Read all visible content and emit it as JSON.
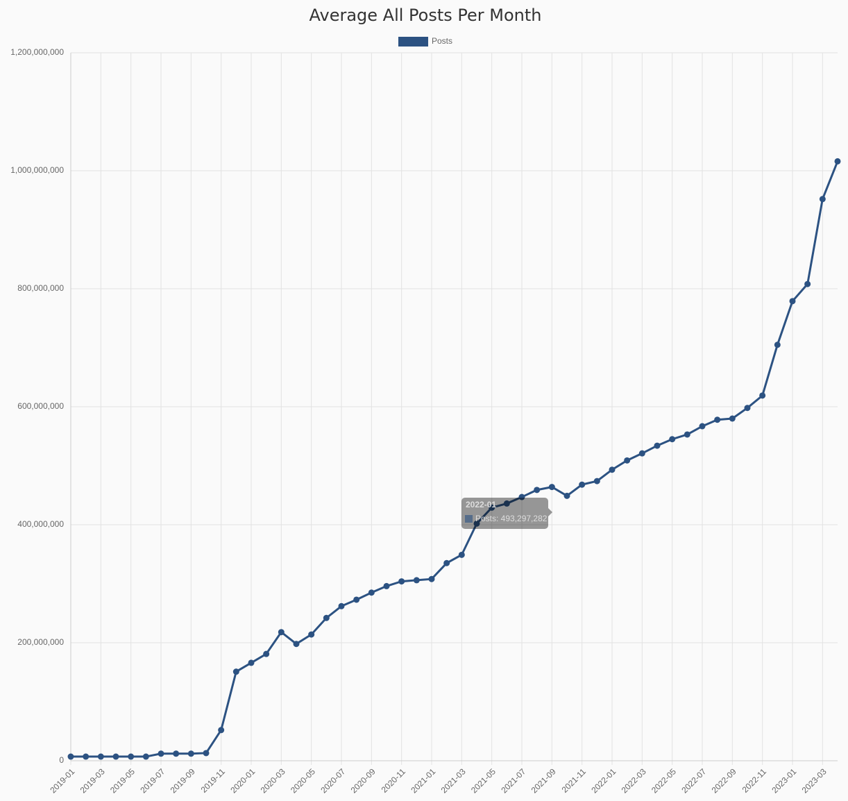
{
  "chart_data": {
    "type": "line",
    "title": "Average All Posts Per Month",
    "categories": [
      "2019-01",
      null,
      "2019-03",
      null,
      "2019-05",
      null,
      "2019-07",
      null,
      "2019-09",
      null,
      "2019-11",
      null,
      "2020-01",
      null,
      "2020-03",
      null,
      "2020-05",
      null,
      "2020-07",
      null,
      "2020-09",
      null,
      "2020-11",
      null,
      "2021-01",
      null,
      "2021-03",
      null,
      "2021-05",
      null,
      "2021-07",
      null,
      "2021-09",
      null,
      "2021-11",
      null,
      "2022-01",
      null,
      "2022-03",
      null,
      "2022-05",
      null,
      "2022-07",
      null,
      "2022-09",
      null,
      "2022-11",
      null,
      "2023-01",
      null,
      "2023-03",
      null
    ],
    "series": [
      {
        "name": "Posts",
        "color": "#2c5282",
        "values": [
          7000000,
          7000000,
          7000000,
          7000000,
          7000000,
          7000000,
          12000000,
          12000000,
          12000000,
          13000000,
          52000000,
          151000000,
          166000000,
          181000000,
          218000000,
          198000000,
          214000000,
          242000000,
          262000000,
          273000000,
          285000000,
          296000000,
          304000000,
          306000000,
          308000000,
          335000000,
          349000000,
          402000000,
          429000000,
          436000000,
          447000000,
          459000000,
          464000000,
          449000000,
          468000000,
          474000000,
          493297282,
          509000000,
          521000000,
          534000000,
          545000000,
          553000000,
          567000000,
          578000000,
          580000000,
          598000000,
          619000000,
          705000000,
          779000000,
          808000000,
          952000000,
          1016000000
        ]
      }
    ],
    "ylim": [
      0,
      1200000000
    ],
    "yticks": [
      0,
      {
        "value": 200000000,
        "label": "200,000,000"
      },
      {
        "value": 400000000,
        "label": "400,000,000"
      },
      {
        "value": 600000000,
        "label": "600,000,000"
      },
      {
        "value": 800000000,
        "label": "800,000,000"
      },
      {
        "value": 1000000000,
        "label": "1,000,000,000"
      },
      {
        "value": 1200000000,
        "label": "1,200,000,000"
      }
    ],
    "grid": true,
    "legend": "top",
    "tooltip": {
      "title": "2022-01",
      "label": "Posts: 493,297,282"
    }
  }
}
